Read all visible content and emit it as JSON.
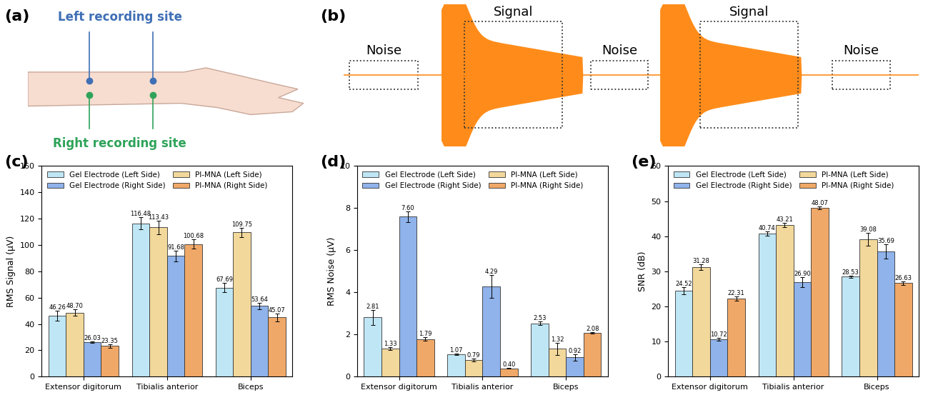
{
  "diagram": {
    "a": {
      "label": "(a)",
      "left_site": "Left recording site",
      "right_site": "Right recording site"
    },
    "b": {
      "label": "(b)",
      "boxes": [
        "Noise",
        "Signal",
        "Noise",
        "Signal",
        "Noise"
      ]
    }
  },
  "chart_data": [
    {
      "type": "bar",
      "panel": "(c)",
      "ylabel": "RMS Signal (μV)",
      "categories": [
        "Extensor digitorum",
        "Tibialis anterior",
        "Biceps"
      ],
      "ylim": [
        0,
        160
      ],
      "yticks": [
        0,
        20,
        40,
        60,
        80,
        100,
        120,
        140,
        160
      ],
      "grid": false,
      "legend": "upper left",
      "data_labels": true,
      "series": [
        {
          "name": "Gel Electrode (Left Side)",
          "color": "#bfe6f5",
          "values": [
            46.26,
            116.48,
            67.69
          ],
          "value_labels": [
            "46.26",
            "116.48",
            "67.69"
          ],
          "error": [
            4.0,
            4.5,
            3.5
          ]
        },
        {
          "name": "PI-MNA (Left Side)",
          "color": "#f2d89b",
          "values": [
            48.7,
            113.43,
            109.75
          ],
          "value_labels": [
            "48.70",
            "113.43",
            "109.75"
          ],
          "error": [
            2.5,
            5.0,
            3.5
          ]
        },
        {
          "name": "Gel Electrode (Right Side)",
          "color": "#8fb3ea",
          "values": [
            26.03,
            91.68,
            53.64
          ],
          "value_labels": [
            "26.03",
            "91.68",
            "53.64"
          ],
          "error": [
            0.5,
            4.0,
            2.5
          ]
        },
        {
          "name": "PI-MNA (Right Side)",
          "color": "#f0a868",
          "values": [
            23.35,
            100.68,
            45.07
          ],
          "value_labels": [
            "23.35",
            "100.68",
            "45.07"
          ],
          "error": [
            1.5,
            3.5,
            3.0
          ]
        }
      ]
    },
    {
      "type": "bar",
      "panel": "(d)",
      "ylabel": "RMS Noise (μV)",
      "categories": [
        "Extensor digitorum",
        "Tibialis anterior",
        "Biceps"
      ],
      "ylim": [
        0,
        10
      ],
      "yticks": [
        0,
        2,
        4,
        6,
        8,
        10
      ],
      "grid": false,
      "legend": "upper left",
      "data_labels": true,
      "series": [
        {
          "name": "Gel Electrode (Left Side)",
          "color": "#bfe6f5",
          "values": [
            2.81,
            1.07,
            2.53
          ],
          "value_labels": [
            "2.81",
            "1.07",
            "2.53"
          ],
          "error": [
            0.35,
            0.03,
            0.08
          ]
        },
        {
          "name": "PI-MNA (Left Side)",
          "color": "#f2d89b",
          "values": [
            1.33,
            0.79,
            1.32
          ],
          "value_labels": [
            "1.33",
            "0.79",
            "1.32"
          ],
          "error": [
            0.08,
            0.07,
            0.3
          ]
        },
        {
          "name": "Gel Electrode (Right Side)",
          "color": "#8fb3ea",
          "values": [
            7.6,
            4.29,
            0.92
          ],
          "value_labels": [
            "7.60",
            "4.29",
            "0.92"
          ],
          "error": [
            0.25,
            0.55,
            0.15
          ]
        },
        {
          "name": "PI-MNA (Right Side)",
          "color": "#f0a868",
          "values": [
            1.79,
            0.4,
            2.08
          ],
          "value_labels": [
            "1.79",
            "0.40",
            "2.08"
          ],
          "error": [
            0.07,
            0.01,
            0.03
          ]
        }
      ]
    },
    {
      "type": "bar",
      "panel": "(e)",
      "ylabel": "SNR (dB)",
      "categories": [
        "Extensor digitorum",
        "Tibialis anterior",
        "Biceps"
      ],
      "ylim": [
        0,
        60
      ],
      "yticks": [
        0,
        10,
        20,
        30,
        40,
        50,
        60
      ],
      "grid": false,
      "legend": "upper left",
      "data_labels": true,
      "series": [
        {
          "name": "Gel Electrode (Left Side)",
          "color": "#bfe6f5",
          "values": [
            24.52,
            40.74,
            28.53
          ],
          "value_labels": [
            "24.52",
            "40.74",
            "28.53"
          ],
          "error": [
            1.0,
            0.6,
            0.3
          ]
        },
        {
          "name": "PI-MNA (Left Side)",
          "color": "#f2d89b",
          "values": [
            31.28,
            43.21,
            39.08
          ],
          "value_labels": [
            "31.28",
            "43.21",
            "39.08"
          ],
          "error": [
            0.8,
            0.6,
            1.8
          ]
        },
        {
          "name": "Gel Electrode (Right Side)",
          "color": "#8fb3ea",
          "values": [
            10.72,
            26.9,
            35.69
          ],
          "value_labels": [
            "10.72",
            "26.90",
            "35.69"
          ],
          "error": [
            0.4,
            1.4,
            2.0
          ]
        },
        {
          "name": "PI-MNA (Right Side)",
          "color": "#f0a868",
          "values": [
            22.31,
            48.07,
            26.63
          ],
          "value_labels": [
            "22.31",
            "48.07",
            "26.63"
          ],
          "error": [
            0.6,
            0.4,
            0.6
          ]
        }
      ]
    }
  ]
}
